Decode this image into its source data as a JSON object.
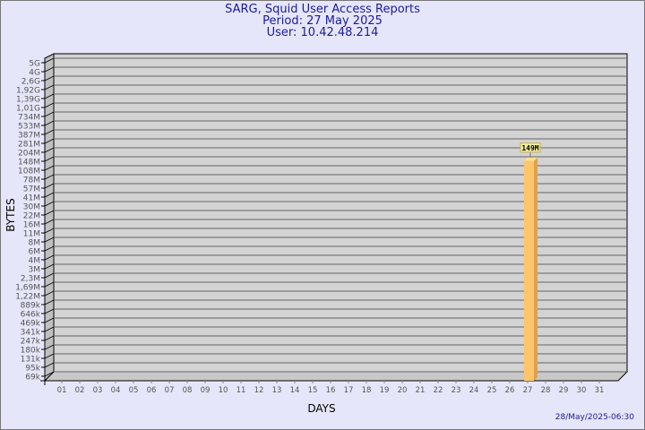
{
  "chart_data": {
    "type": "bar",
    "title": "SARG, Squid User Access Reports",
    "subtitle": [
      "Period: 27 May 2025",
      "User: 10.42.48.214"
    ],
    "xlabel": "DAYS",
    "ylabel": "BYTES",
    "y_scale": "log",
    "grid": true,
    "y_ticks": [
      "5G",
      "4G",
      "2,6G",
      "1,92G",
      "1,39G",
      "1,01G",
      "734M",
      "533M",
      "387M",
      "281M",
      "204M",
      "148M",
      "108M",
      "78M",
      "57M",
      "41M",
      "30M",
      "22M",
      "16M",
      "11M",
      "8M",
      "6M",
      "4M",
      "3M",
      "2,3M",
      "1,69M",
      "1,22M",
      "889k",
      "646k",
      "469k",
      "341k",
      "247k",
      "180k",
      "131k",
      "95k",
      "69k"
    ],
    "categories": [
      "01",
      "02",
      "03",
      "04",
      "05",
      "06",
      "07",
      "08",
      "09",
      "10",
      "11",
      "12",
      "13",
      "14",
      "15",
      "16",
      "17",
      "18",
      "19",
      "20",
      "21",
      "22",
      "23",
      "24",
      "25",
      "26",
      "27",
      "28",
      "29",
      "30",
      "31"
    ],
    "bars": [
      {
        "day": "27",
        "value": 149000000,
        "label": "149M"
      }
    ],
    "colors": {
      "bar_front": "#ffc56a",
      "bar_side": "#dda24c",
      "bar_top": "#ffe08a",
      "wall": "#d3d3d3",
      "label_bg": "#f5f0a0"
    }
  },
  "footer": {
    "timestamp": "28/May/2025-06:30"
  }
}
